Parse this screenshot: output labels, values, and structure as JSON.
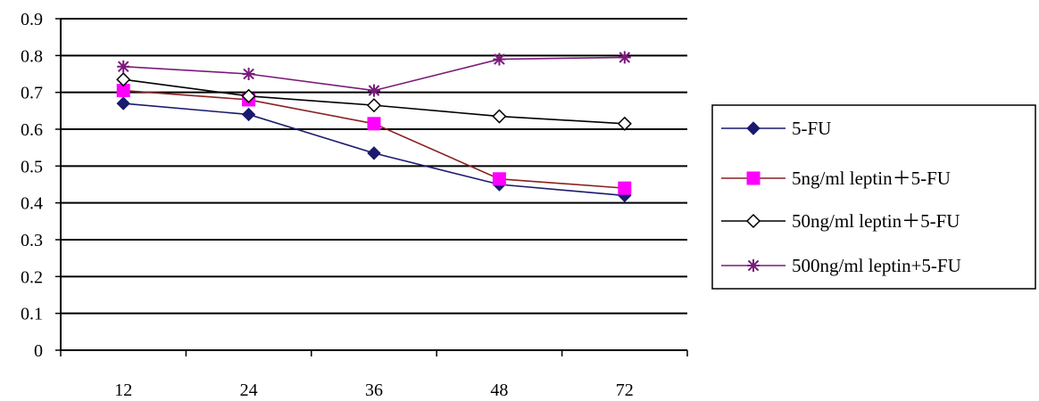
{
  "chart_data": {
    "type": "line",
    "x": [
      "12",
      "24",
      "36",
      "48",
      "72"
    ],
    "ylim": [
      0,
      0.9
    ],
    "y_ticks": [
      "0",
      "0.1",
      "0.2",
      "0.3",
      "0.4",
      "0.5",
      "0.6",
      "0.7",
      "0.8",
      "0.9"
    ],
    "grid": true,
    "legend_position": "right",
    "series": [
      {
        "name": "5-FU",
        "marker": "diamond",
        "color": "#1a1a6e",
        "values": [
          0.67,
          0.64,
          0.535,
          0.45,
          0.42
        ]
      },
      {
        "name": "5ng/ml leptin＋5-FU",
        "marker": "square",
        "color": "#ff00ff",
        "line_color": "#8b2020",
        "values": [
          0.705,
          0.68,
          0.615,
          0.465,
          0.44
        ]
      },
      {
        "name": "50ng/ml leptin＋5-FU",
        "marker": "open-diamond",
        "color": "#000000",
        "values": [
          0.735,
          0.69,
          0.665,
          0.635,
          0.615
        ]
      },
      {
        "name": "500ng/ml leptin+5-FU",
        "marker": "asterisk",
        "color": "#7a1a7a",
        "values": [
          0.77,
          0.75,
          0.705,
          0.79,
          0.795
        ]
      }
    ]
  }
}
